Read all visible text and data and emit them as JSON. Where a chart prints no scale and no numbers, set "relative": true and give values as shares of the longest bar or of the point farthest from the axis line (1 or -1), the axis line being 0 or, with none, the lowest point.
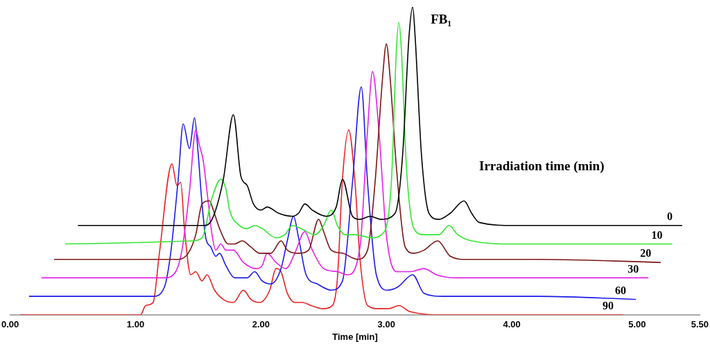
{
  "chart_data": {
    "type": "line",
    "relative": true,
    "xlabel": "Time [min]",
    "legend_title": "Irradiation time (min)",
    "annotations": [
      {
        "text": "FB₁",
        "x": 3.21,
        "y": 1.0
      }
    ],
    "xlim": [
      0,
      5.5
    ],
    "xticks": [
      {
        "value": 0,
        "label": "0.00"
      },
      {
        "value": 1,
        "label": "1.00"
      },
      {
        "value": 2,
        "label": "2.00"
      },
      {
        "value": 3,
        "label": "3.00"
      },
      {
        "value": 4,
        "label": "4.00"
      },
      {
        "value": 5,
        "label": "5.00"
      },
      {
        "value": 5.5,
        "label": "5.50"
      }
    ],
    "grid": false,
    "legend": false,
    "marker": "none",
    "line_style": "solid",
    "series": [
      {
        "name": "0",
        "color": "#000000",
        "x": [
          0.54,
          1.54,
          1.61,
          1.7,
          1.78,
          1.84,
          1.89,
          1.94,
          2.0,
          2.05,
          2.14,
          2.25,
          2.3,
          2.35,
          2.41,
          2.52,
          2.6,
          2.65,
          2.73,
          2.79,
          2.87,
          2.96,
          3.07,
          3.13,
          3.18,
          3.21,
          3.23,
          3.28,
          3.34,
          3.42,
          3.51,
          3.62,
          3.68,
          3.74,
          4.03,
          4.48,
          5.36
        ],
        "values": [
          0.29,
          0.29,
          0.31,
          0.44,
          0.65,
          0.45,
          0.42,
          0.36,
          0.34,
          0.35,
          0.33,
          0.32,
          0.33,
          0.36,
          0.34,
          0.32,
          0.35,
          0.44,
          0.32,
          0.31,
          0.32,
          0.31,
          0.33,
          0.52,
          0.9,
          1.0,
          0.9,
          0.52,
          0.33,
          0.31,
          0.33,
          0.37,
          0.33,
          0.3,
          0.29,
          0.29,
          0.29
        ]
      },
      {
        "name": "10",
        "color": "#33e633",
        "x": [
          0.44,
          1.45,
          1.53,
          1.61,
          1.68,
          1.72,
          1.75,
          1.83,
          1.89,
          1.95,
          2.01,
          2.12,
          2.19,
          2.25,
          2.32,
          2.43,
          2.5,
          2.56,
          2.61,
          2.67,
          2.75,
          2.89,
          2.96,
          3.04,
          3.08,
          3.1,
          3.12,
          3.16,
          3.22,
          3.3,
          3.42,
          3.5,
          3.57,
          3.68,
          4.03,
          5.28
        ],
        "values": [
          0.23,
          0.24,
          0.25,
          0.38,
          0.44,
          0.41,
          0.34,
          0.29,
          0.28,
          0.29,
          0.28,
          0.25,
          0.26,
          0.29,
          0.28,
          0.26,
          0.29,
          0.34,
          0.29,
          0.26,
          0.26,
          0.25,
          0.26,
          0.43,
          0.86,
          0.95,
          0.86,
          0.48,
          0.28,
          0.26,
          0.26,
          0.29,
          0.26,
          0.24,
          0.23,
          0.23
        ]
      },
      {
        "name": "20",
        "color": "#7a1414",
        "x": [
          0.35,
          1.34,
          1.42,
          1.48,
          1.53,
          1.59,
          1.62,
          1.67,
          1.74,
          1.79,
          1.85,
          1.92,
          1.99,
          2.08,
          2.16,
          2.21,
          2.3,
          2.38,
          2.46,
          2.5,
          2.56,
          2.65,
          2.77,
          2.85,
          2.91,
          2.97,
          3.0,
          3.03,
          3.08,
          3.15,
          3.22,
          3.3,
          3.41,
          3.51,
          3.64,
          4.22,
          5.19
        ],
        "values": [
          0.18,
          0.18,
          0.2,
          0.26,
          0.36,
          0.37,
          0.34,
          0.28,
          0.23,
          0.23,
          0.24,
          0.22,
          0.2,
          0.2,
          0.24,
          0.21,
          0.2,
          0.21,
          0.31,
          0.27,
          0.21,
          0.2,
          0.18,
          0.21,
          0.43,
          0.77,
          0.88,
          0.77,
          0.48,
          0.22,
          0.2,
          0.21,
          0.24,
          0.19,
          0.18,
          0.18,
          0.17
        ]
      },
      {
        "name": "30",
        "color": "#e61ee6",
        "x": [
          0.25,
          1.23,
          1.32,
          1.37,
          1.43,
          1.48,
          1.51,
          1.54,
          1.57,
          1.61,
          1.64,
          1.68,
          1.72,
          1.78,
          1.86,
          1.96,
          2.01,
          2.05,
          2.12,
          2.2,
          2.27,
          2.35,
          2.41,
          2.5,
          2.61,
          2.69,
          2.79,
          2.85,
          2.89,
          2.94,
          3.0,
          3.08,
          3.19,
          3.3,
          3.4,
          3.55,
          4.22,
          5.09
        ],
        "values": [
          0.12,
          0.12,
          0.14,
          0.21,
          0.4,
          0.6,
          0.55,
          0.5,
          0.4,
          0.26,
          0.21,
          0.23,
          0.21,
          0.21,
          0.17,
          0.15,
          0.16,
          0.2,
          0.17,
          0.15,
          0.2,
          0.27,
          0.21,
          0.15,
          0.14,
          0.13,
          0.22,
          0.6,
          0.79,
          0.6,
          0.26,
          0.14,
          0.14,
          0.15,
          0.13,
          0.12,
          0.12,
          0.12
        ]
      },
      {
        "name": "60",
        "color": "#1a1ae6",
        "x": [
          0.15,
          1.14,
          1.23,
          1.28,
          1.34,
          1.38,
          1.43,
          1.47,
          1.5,
          1.53,
          1.56,
          1.6,
          1.64,
          1.67,
          1.72,
          1.79,
          1.89,
          1.95,
          2.01,
          2.08,
          2.16,
          2.21,
          2.26,
          2.3,
          2.36,
          2.45,
          2.56,
          2.65,
          2.73,
          2.8,
          2.85,
          2.92,
          3.01,
          3.09,
          3.21,
          3.3,
          3.45,
          4.22,
          4.99
        ],
        "values": [
          0.06,
          0.06,
          0.09,
          0.2,
          0.44,
          0.62,
          0.54,
          0.64,
          0.52,
          0.36,
          0.25,
          0.22,
          0.19,
          0.2,
          0.16,
          0.12,
          0.12,
          0.14,
          0.11,
          0.1,
          0.15,
          0.24,
          0.32,
          0.25,
          0.13,
          0.1,
          0.08,
          0.11,
          0.43,
          0.74,
          0.43,
          0.13,
          0.08,
          0.09,
          0.13,
          0.07,
          0.06,
          0.06,
          0.05
        ]
      },
      {
        "name": "90",
        "color": "#e62222",
        "x": [
          0.08,
          1.04,
          1.08,
          1.14,
          1.19,
          1.29,
          1.33,
          1.36,
          1.39,
          1.44,
          1.48,
          1.53,
          1.57,
          1.63,
          1.7,
          1.78,
          1.86,
          1.92,
          1.99,
          2.07,
          2.12,
          2.16,
          2.21,
          2.27,
          2.33,
          2.4,
          2.49,
          2.57,
          2.61,
          2.65,
          2.7,
          2.75,
          2.79,
          2.85,
          2.94,
          3.02,
          3.1,
          3.19,
          3.45,
          4.22,
          4.89
        ],
        "values": [
          0.0,
          0.0,
          0.03,
          0.04,
          0.2,
          0.49,
          0.42,
          0.43,
          0.28,
          0.13,
          0.14,
          0.11,
          0.13,
          0.08,
          0.05,
          0.04,
          0.08,
          0.05,
          0.04,
          0.08,
          0.15,
          0.14,
          0.07,
          0.04,
          0.04,
          0.03,
          0.02,
          0.03,
          0.12,
          0.44,
          0.6,
          0.43,
          0.18,
          0.03,
          0.02,
          0.02,
          0.03,
          0.01,
          0.0,
          0.0,
          0.0
        ]
      }
    ]
  }
}
